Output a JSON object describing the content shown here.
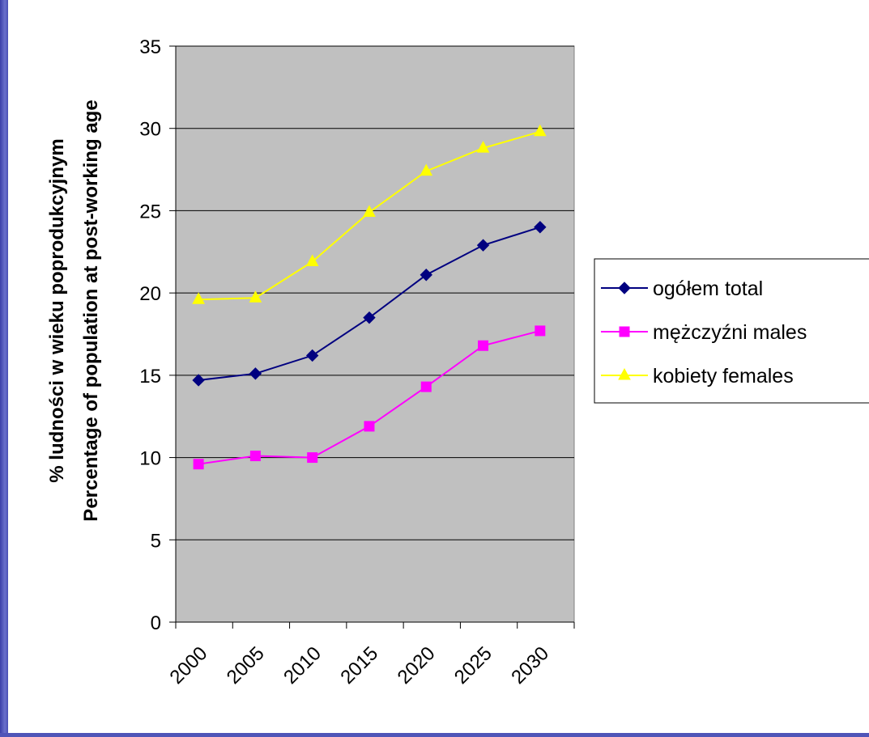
{
  "chart_data": {
    "type": "line",
    "ylabel_line1": "% ludności w wieku poprodukcyjnym",
    "ylabel_line2": "Percentage of population at post-working age",
    "x_ticks": [
      "2000",
      "2005",
      "2010",
      "2015",
      "2020",
      "2025",
      "2030"
    ],
    "ylim": [
      0,
      35
    ],
    "y_ticks": [
      0,
      5,
      10,
      15,
      20,
      25,
      30,
      35
    ],
    "grid": true,
    "plot_background": "#c0c0c0",
    "legend_position": "right",
    "series": [
      {
        "name": "ogółem total",
        "color": "#000080",
        "marker": "diamond",
        "x": [
          2002,
          2007,
          2012,
          2017,
          2022,
          2027,
          2032
        ],
        "values": [
          14.7,
          15.1,
          16.2,
          18.5,
          21.1,
          22.9,
          24.0
        ]
      },
      {
        "name": "mężczyźni males",
        "color": "#ff00ff",
        "marker": "square",
        "x": [
          2002,
          2007,
          2012,
          2017,
          2022,
          2027,
          2032
        ],
        "values": [
          9.6,
          10.1,
          10.0,
          11.9,
          14.3,
          16.8,
          17.7
        ]
      },
      {
        "name": "kobiety females",
        "color": "#ffff00",
        "marker": "triangle",
        "x": [
          2002,
          2007,
          2012,
          2017,
          2022,
          2027,
          2032
        ],
        "values": [
          19.6,
          19.7,
          21.9,
          24.9,
          27.4,
          28.8,
          29.8
        ]
      }
    ]
  }
}
